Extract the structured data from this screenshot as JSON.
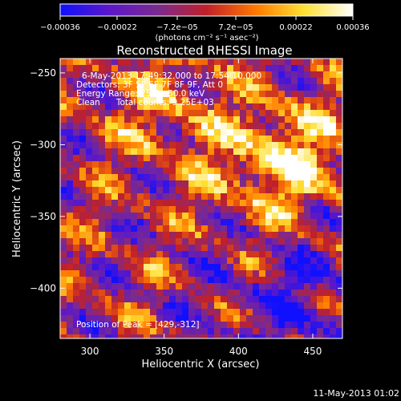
{
  "chart_data": {
    "type": "heatmap",
    "title": "Reconstructed RHESSI Image",
    "xlabel": "Heliocentric X (arcsec)",
    "ylabel": "Heliocentric Y (arcsec)",
    "xlim": [
      280,
      470
    ],
    "ylim": [
      -435,
      -240
    ],
    "x_ticks": [
      300,
      350,
      400,
      450
    ],
    "y_ticks": [
      -250,
      -300,
      -350,
      -400
    ],
    "colorbar": {
      "range": [
        -0.00036,
        0.00036
      ],
      "tick_values": [
        -0.00036,
        -0.00022,
        -7.2e-05,
        7.2e-05,
        0.00022,
        0.00036
      ],
      "tick_labels": [
        "-0.00036",
        "-0.00022",
        "-7.2e-05",
        "7.2e-05",
        "0.00022",
        "0.00036"
      ],
      "unit": "(photons cm⁻² s⁻¹ asec⁻²)",
      "colors": [
        "#1010ff",
        "#5c18c8",
        "#7a2a90",
        "#c0202a",
        "#ff7a00",
        "#ffe030",
        "#ffffff"
      ]
    },
    "annotations": [
      "6-May-2013 17:49:32.000 to 17:54:10.000",
      "Detectors: 3F 5F 6F 7F 8F 9F, Att 0",
      "Energy Range: 25.0 - 50.0 keV",
      "Clean      Total counts: 9.25E+03",
      "Position of Peak = [429,-312]"
    ],
    "peak": {
      "x": 429,
      "y": -312
    }
  },
  "footer_timestamp": "11-May-2013 01:02"
}
